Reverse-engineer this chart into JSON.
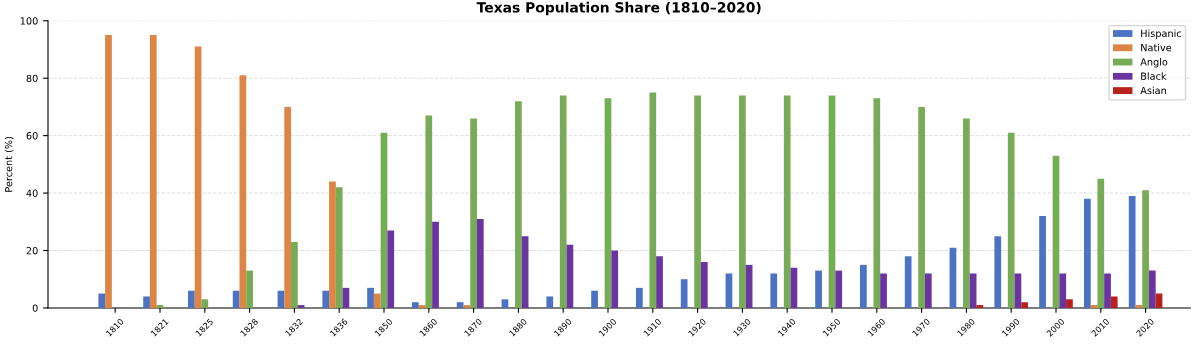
{
  "chart_data": {
    "type": "bar",
    "title": "Texas Population Share (1810–2020)",
    "ylabel": "Percent (%)",
    "categories": [
      "1810",
      "1821",
      "1825",
      "1828",
      "1832",
      "1836",
      "1850",
      "1860",
      "1870",
      "1880",
      "1890",
      "1900",
      "1910",
      "1920",
      "1930",
      "1940",
      "1950",
      "1960",
      "1970",
      "1980",
      "1990",
      "2000",
      "2010",
      "2020"
    ],
    "series": [
      {
        "name": "Hispanic",
        "color": "#4c72c4",
        "values": [
          5,
          4,
          6,
          6,
          6,
          6,
          7,
          2,
          2,
          3,
          4,
          6,
          7,
          10,
          12,
          12,
          13,
          15,
          18,
          21,
          25,
          32,
          38,
          39
        ]
      },
      {
        "name": "Native",
        "color": "#dd8544",
        "values": [
          95,
          95,
          91,
          81,
          70,
          44,
          5,
          1,
          1,
          0,
          0,
          0,
          0,
          0,
          0,
          0,
          0,
          0,
          0,
          0,
          0,
          0,
          1,
          1
        ]
      },
      {
        "name": "Anglo",
        "color": "#78ab55",
        "values": [
          0,
          1,
          3,
          13,
          23,
          42,
          61,
          67,
          66,
          72,
          74,
          73,
          75,
          74,
          74,
          74,
          74,
          73,
          70,
          66,
          61,
          53,
          45,
          41
        ]
      },
      {
        "name": "Black",
        "color": "#6a35a0",
        "values": [
          0,
          0,
          0,
          0,
          1,
          7,
          27,
          30,
          31,
          25,
          22,
          20,
          18,
          16,
          15,
          14,
          13,
          12,
          12,
          12,
          12,
          12,
          12,
          13
        ]
      },
      {
        "name": "Asian",
        "color": "#b8221c",
        "values": [
          0,
          0,
          0,
          0,
          0,
          0,
          0,
          0,
          0,
          0,
          0,
          0,
          0,
          0,
          0,
          0,
          0,
          0,
          0,
          1,
          2,
          3,
          4,
          5
        ]
      }
    ],
    "ylim": [
      0,
      100
    ],
    "yticks": [
      0,
      20,
      40,
      60,
      80,
      100
    ],
    "grid": "y",
    "legend": "top right"
  }
}
